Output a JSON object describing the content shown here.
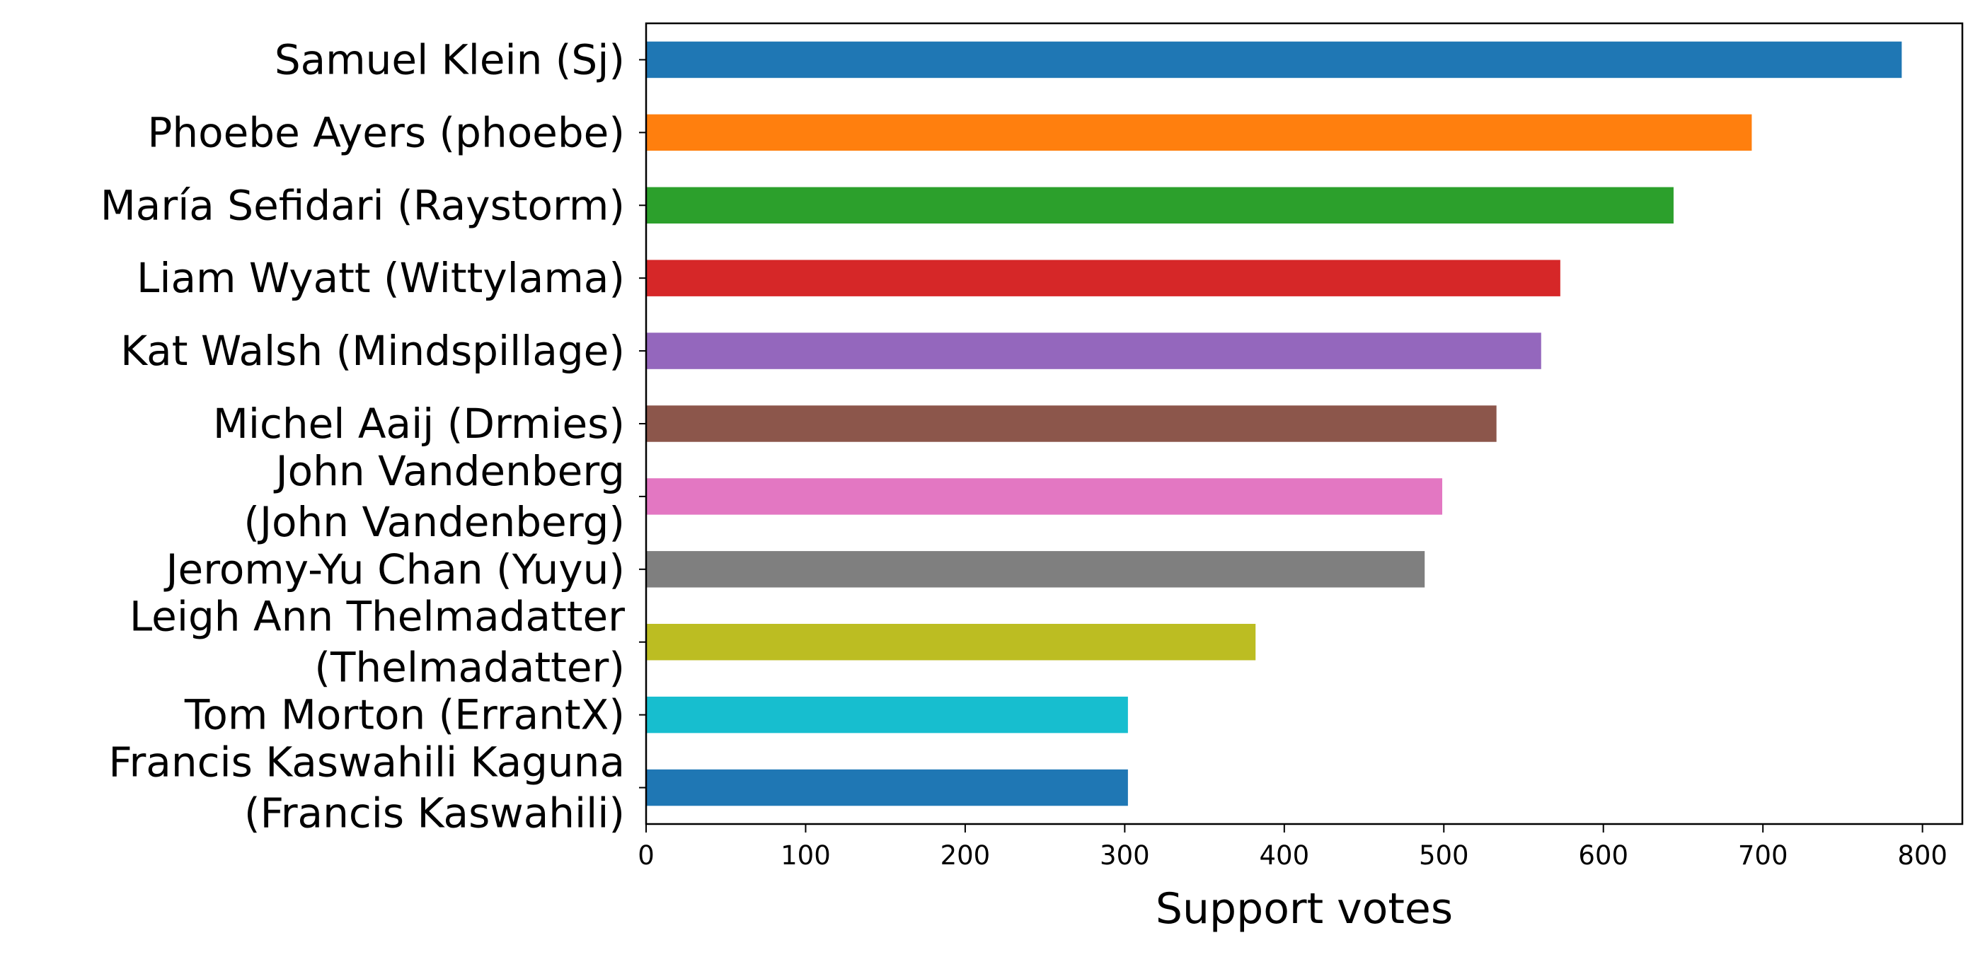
{
  "chart_data": {
    "type": "bar",
    "orientation": "horizontal",
    "title": "",
    "xlabel": "Support votes",
    "ylabel": "",
    "xlim": [
      0,
      825
    ],
    "xticks": [
      0,
      100,
      200,
      300,
      400,
      500,
      600,
      700,
      800
    ],
    "grid": false,
    "legend": "none",
    "categories": [
      "Samuel Klein (Sj)",
      "Phoebe Ayers (phoebe)",
      "María Sefidari (Raystorm)",
      "Liam Wyatt (Wittylama)",
      "Kat Walsh (Mindspillage)",
      "Michel Aaij (Drmies)",
      "John Vandenberg (John Vandenberg)",
      "Jeromy-Yu Chan (Yuyu)",
      "Leigh Ann Thelmadatter (Thelmadatter)",
      "Tom Morton (ErrantX)",
      "Francis Kaswahili Kaguna (Francis Kaswahili)"
    ],
    "category_lines": [
      [
        "Samuel Klein (Sj)"
      ],
      [
        "Phoebe Ayers (phoebe)"
      ],
      [
        "María Sefidari (Raystorm)"
      ],
      [
        "Liam Wyatt (Wittylama)"
      ],
      [
        "Kat Walsh (Mindspillage)"
      ],
      [
        "Michel Aaij (Drmies)"
      ],
      [
        "John Vandenberg",
        "(John Vandenberg)"
      ],
      [
        "Jeromy-Yu Chan (Yuyu)"
      ],
      [
        "Leigh Ann Thelmadatter",
        "(Thelmadatter)"
      ],
      [
        "Tom Morton (ErrantX)"
      ],
      [
        "Francis Kaswahili Kaguna",
        "(Francis Kaswahili)"
      ]
    ],
    "values": [
      787,
      693,
      644,
      573,
      561,
      533,
      499,
      488,
      382,
      302,
      302
    ],
    "colors": [
      "#1f77b4",
      "#ff7f0e",
      "#2ca02c",
      "#d62728",
      "#9467bd",
      "#8c564b",
      "#e377c2",
      "#7f7f7f",
      "#bcbd22",
      "#17becf",
      "#1f77b4"
    ]
  }
}
